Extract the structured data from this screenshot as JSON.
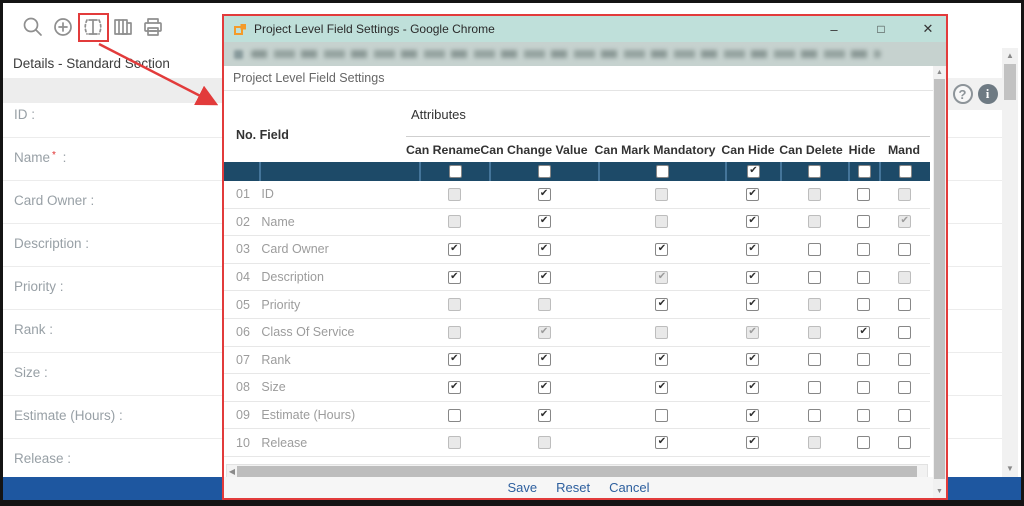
{
  "colors": {
    "annotation": "#e23b3b",
    "dialog_titlebar": "#bfe0da",
    "select_all_bar": "#1d4a68",
    "bottom_bar": "#1e57a0",
    "link": "#2d5f9e"
  },
  "toolbar": {
    "icons": [
      "search-icon",
      "add-icon",
      "field-settings-icon",
      "board-icon",
      "print-icon"
    ],
    "highlighted_icon": "field-settings-icon"
  },
  "background": {
    "section_title": "Details - Standard Section",
    "form_fields": [
      {
        "label": "ID",
        "required": false
      },
      {
        "label": "Name",
        "required": true
      },
      {
        "label": "Card Owner",
        "required": false
      },
      {
        "label": "Description",
        "required": false
      },
      {
        "label": "Priority",
        "required": false
      },
      {
        "label": "Rank",
        "required": false
      },
      {
        "label": "Size",
        "required": false
      },
      {
        "label": "Estimate (Hours)",
        "required": false
      },
      {
        "label": "Release",
        "required": false
      }
    ],
    "help_icon": "?",
    "info_icon": "i"
  },
  "dialog": {
    "window_title": "Project Level Field Settings - Google Chrome",
    "window_controls": {
      "minimize": "–",
      "maximize": "□",
      "close": "✕"
    },
    "heading": "Project Level Field Settings",
    "table": {
      "no_header": "No.",
      "field_header": "Field",
      "attributes_header": "Attributes",
      "columns": [
        "Can Rename",
        "Can Change Value",
        "Can Mark Mandatory",
        "Can Hide",
        "Can Delete",
        "Hide",
        "Mand"
      ],
      "state_legend": {
        "u": "unchecked",
        "c": "checked",
        "d": "disabled-unchecked",
        "dc": "disabled-checked"
      },
      "select_all_states": [
        "u",
        "u",
        "u",
        "c",
        "u",
        "u",
        "u"
      ],
      "rows": [
        {
          "no": "01",
          "field": "ID",
          "cells": [
            "d",
            "c",
            "d",
            "c",
            "d",
            "u",
            "d"
          ]
        },
        {
          "no": "02",
          "field": "Name",
          "cells": [
            "d",
            "c",
            "d",
            "c",
            "d",
            "u",
            "dc"
          ]
        },
        {
          "no": "03",
          "field": "Card Owner",
          "cells": [
            "c",
            "c",
            "c",
            "c",
            "u",
            "u",
            "u"
          ]
        },
        {
          "no": "04",
          "field": "Description",
          "cells": [
            "c",
            "c",
            "dc",
            "c",
            "u",
            "u",
            "d"
          ]
        },
        {
          "no": "05",
          "field": "Priority",
          "cells": [
            "d",
            "d",
            "c",
            "c",
            "d",
            "u",
            "u"
          ]
        },
        {
          "no": "06",
          "field": "Class Of Service",
          "cells": [
            "d",
            "dc",
            "d",
            "dc",
            "d",
            "c",
            "u"
          ]
        },
        {
          "no": "07",
          "field": "Rank",
          "cells": [
            "c",
            "c",
            "c",
            "c",
            "u",
            "u",
            "u"
          ]
        },
        {
          "no": "08",
          "field": "Size",
          "cells": [
            "c",
            "c",
            "c",
            "c",
            "u",
            "u",
            "u"
          ]
        },
        {
          "no": "09",
          "field": "Estimate (Hours)",
          "cells": [
            "u",
            "c",
            "u",
            "c",
            "u",
            "u",
            "u"
          ]
        },
        {
          "no": "10",
          "field": "Release",
          "cells": [
            "d",
            "d",
            "c",
            "c",
            "d",
            "u",
            "u"
          ]
        }
      ]
    },
    "footer_buttons": [
      "Save",
      "Reset",
      "Cancel"
    ]
  }
}
